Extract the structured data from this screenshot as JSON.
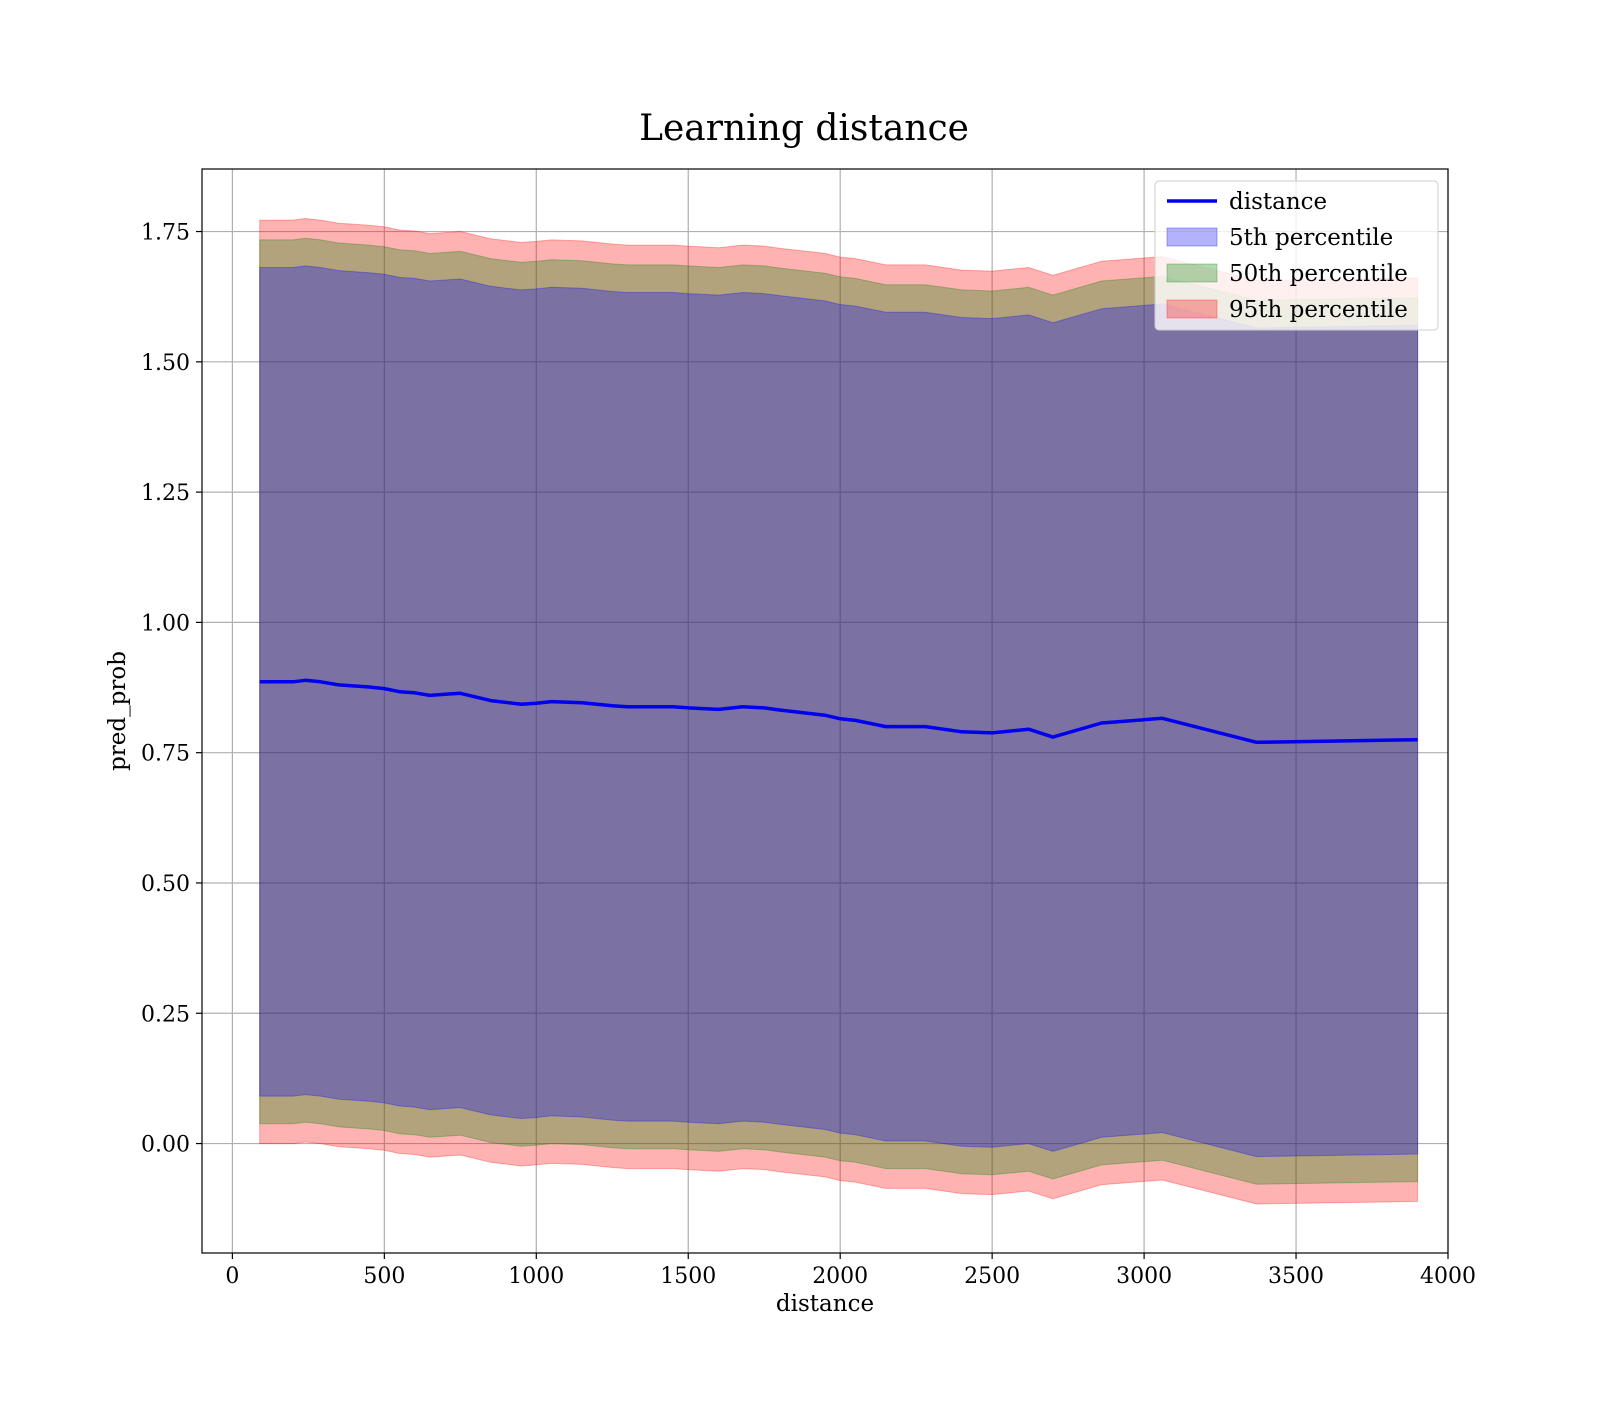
{
  "chart_data": {
    "type": "area",
    "title": "Learning distance",
    "xlabel": "distance",
    "ylabel": "pred_prob",
    "xlim": [
      -100,
      4000
    ],
    "ylim": [
      -0.21,
      1.87
    ],
    "xticks": [
      0,
      500,
      1000,
      1500,
      2000,
      2500,
      3000,
      3500,
      4000
    ],
    "yticks": [
      0.0,
      0.25,
      0.5,
      0.75,
      1.0,
      1.25,
      1.5,
      1.75
    ],
    "xtick_labels": [
      "0",
      "500",
      "1000",
      "1500",
      "2000",
      "2500",
      "3000",
      "3500",
      "4000"
    ],
    "ytick_labels": [
      "0.00",
      "0.25",
      "0.50",
      "0.75",
      "1.00",
      "1.25",
      "1.50",
      "1.75"
    ],
    "grid": true,
    "legend_position": "top-right",
    "x": [
      90,
      200,
      240,
      290,
      350,
      450,
      500,
      550,
      600,
      650,
      700,
      750,
      850,
      950,
      1000,
      1050,
      1150,
      1250,
      1300,
      1450,
      1500,
      1600,
      1680,
      1750,
      1800,
      1950,
      2000,
      2050,
      2150,
      2280,
      2400,
      2500,
      2620,
      2700,
      2860,
      3060,
      3370,
      3900
    ],
    "series": [
      {
        "name": "distance",
        "role": "line",
        "color": "#0000ee",
        "values": [
          0.886,
          0.886,
          0.889,
          0.886,
          0.88,
          0.876,
          0.873,
          0.867,
          0.865,
          0.86,
          0.862,
          0.864,
          0.85,
          0.843,
          0.845,
          0.848,
          0.846,
          0.84,
          0.838,
          0.838,
          0.836,
          0.833,
          0.838,
          0.836,
          0.832,
          0.822,
          0.815,
          0.812,
          0.8,
          0.8,
          0.79,
          0.788,
          0.795,
          0.78,
          0.807,
          0.816,
          0.77,
          0.775
        ]
      },
      {
        "name": "5th percentile",
        "role": "band",
        "color": "#0000ff",
        "lower": [
          0.091,
          0.091,
          0.094,
          0.091,
          0.085,
          0.081,
          0.078,
          0.072,
          0.07,
          0.065,
          0.067,
          0.069,
          0.055,
          0.048,
          0.05,
          0.053,
          0.051,
          0.045,
          0.043,
          0.043,
          0.041,
          0.038,
          0.043,
          0.041,
          0.037,
          0.027,
          0.02,
          0.017,
          0.005,
          0.005,
          -0.005,
          -0.007,
          0.0,
          -0.015,
          0.012,
          0.021,
          -0.025,
          -0.02
        ],
        "upper": [
          1.681,
          1.681,
          1.684,
          1.681,
          1.675,
          1.671,
          1.668,
          1.662,
          1.66,
          1.655,
          1.657,
          1.659,
          1.645,
          1.638,
          1.64,
          1.643,
          1.641,
          1.635,
          1.633,
          1.633,
          1.631,
          1.628,
          1.633,
          1.631,
          1.627,
          1.617,
          1.61,
          1.607,
          1.595,
          1.595,
          1.585,
          1.583,
          1.59,
          1.575,
          1.602,
          1.611,
          1.565,
          1.57
        ]
      },
      {
        "name": "50th percentile",
        "role": "band",
        "color": "#008000",
        "lower": [
          0.038,
          0.038,
          0.041,
          0.038,
          0.032,
          0.028,
          0.025,
          0.019,
          0.017,
          0.012,
          0.014,
          0.016,
          0.002,
          -0.005,
          -0.003,
          0.0,
          -0.002,
          -0.008,
          -0.01,
          -0.01,
          -0.012,
          -0.015,
          -0.01,
          -0.012,
          -0.016,
          -0.026,
          -0.033,
          -0.036,
          -0.048,
          -0.048,
          -0.058,
          -0.06,
          -0.053,
          -0.068,
          -0.041,
          -0.032,
          -0.078,
          -0.073
        ],
        "upper": [
          1.734,
          1.734,
          1.737,
          1.734,
          1.728,
          1.724,
          1.721,
          1.715,
          1.713,
          1.708,
          1.71,
          1.712,
          1.698,
          1.691,
          1.693,
          1.696,
          1.694,
          1.688,
          1.686,
          1.686,
          1.684,
          1.681,
          1.686,
          1.684,
          1.68,
          1.67,
          1.663,
          1.66,
          1.648,
          1.648,
          1.638,
          1.636,
          1.643,
          1.628,
          1.655,
          1.664,
          1.618,
          1.623
        ]
      },
      {
        "name": "95th percentile",
        "role": "band",
        "color": "#ff0000",
        "lower": [
          0.0,
          0.0,
          0.003,
          0.0,
          -0.006,
          -0.01,
          -0.013,
          -0.019,
          -0.021,
          -0.026,
          -0.024,
          -0.022,
          -0.036,
          -0.043,
          -0.041,
          -0.038,
          -0.04,
          -0.046,
          -0.048,
          -0.048,
          -0.05,
          -0.053,
          -0.048,
          -0.05,
          -0.054,
          -0.064,
          -0.071,
          -0.074,
          -0.086,
          -0.086,
          -0.096,
          -0.098,
          -0.091,
          -0.106,
          -0.079,
          -0.07,
          -0.116,
          -0.111
        ],
        "upper": [
          1.772,
          1.772,
          1.775,
          1.772,
          1.766,
          1.762,
          1.759,
          1.753,
          1.751,
          1.746,
          1.748,
          1.75,
          1.736,
          1.729,
          1.731,
          1.734,
          1.732,
          1.726,
          1.724,
          1.724,
          1.722,
          1.719,
          1.724,
          1.722,
          1.718,
          1.708,
          1.701,
          1.698,
          1.686,
          1.686,
          1.676,
          1.674,
          1.681,
          1.666,
          1.693,
          1.702,
          1.656,
          1.661
        ]
      }
    ]
  }
}
